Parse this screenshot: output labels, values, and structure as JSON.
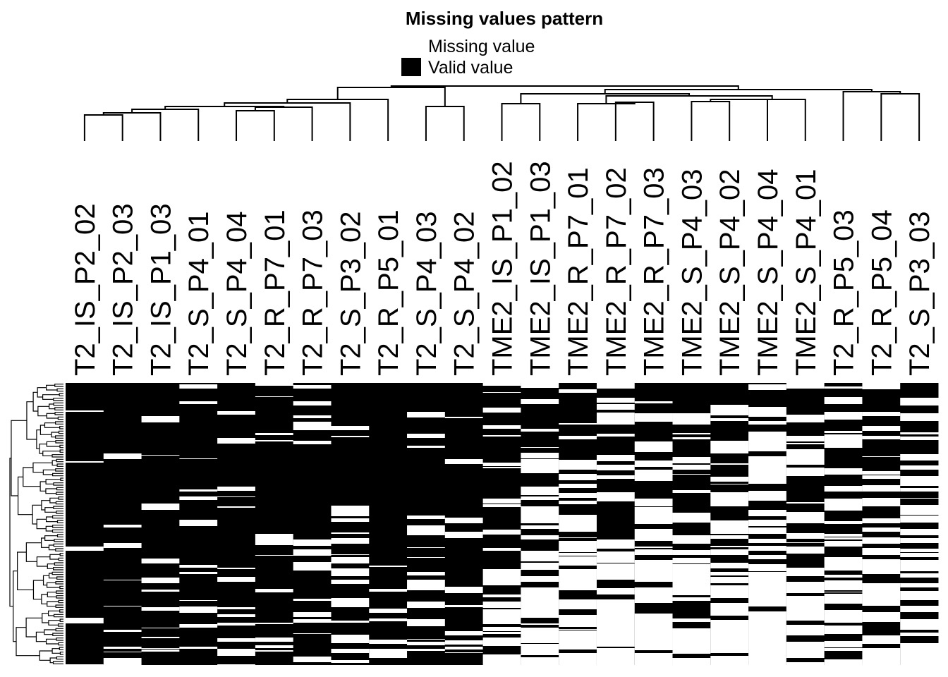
{
  "chart_data": {
    "type": "heatmap",
    "title": "Missing values pattern",
    "legend": {
      "placement": "top-center",
      "entries": [
        {
          "label": "Missing value",
          "color": "#ffffff"
        },
        {
          "label": "Valid value",
          "color": "#000000"
        }
      ]
    },
    "columns": [
      "T2_IS_P2_02",
      "T2_IS_P2_03",
      "T2_IS_P1_03",
      "T2_S_P4_01",
      "T2_S_P4_04",
      "T2_R_P7_01",
      "T2_R_P7_03",
      "T2_S_P3_02",
      "T2_R_P5_01",
      "T2_S_P4_03",
      "T2_S_P4_02",
      "TME2_IS_P1_02",
      "TME2_IS_P1_03",
      "TME2_R_P7_01",
      "TME2_R_P7_02",
      "TME2_R_P7_03",
      "TME2_S_P4_03",
      "TME2_S_P4_02",
      "TME2_S_P4_04",
      "TME2_S_P4_01",
      "T2_R_P5_03",
      "T2_R_P5_04",
      "T2_S_P3_03"
    ],
    "valid_fraction_by_column": [
      0.93,
      0.88,
      0.89,
      0.86,
      0.86,
      0.89,
      0.85,
      0.8,
      0.86,
      0.78,
      0.8,
      0.6,
      0.6,
      0.52,
      0.48,
      0.42,
      0.5,
      0.46,
      0.45,
      0.5,
      0.55,
      0.55,
      0.6
    ],
    "color_scale": {
      "missing": "#ffffff",
      "valid": "#000000"
    },
    "row_dendrogram": true,
    "column_dendrogram": true,
    "grid": false
  }
}
